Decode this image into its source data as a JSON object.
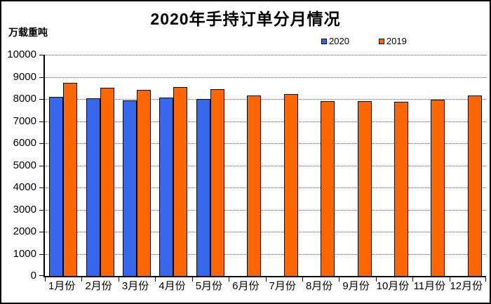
{
  "chart_data": {
    "type": "bar",
    "title": "2020年手持订单分月情况",
    "unit_label": "万载重吨",
    "categories": [
      "1月份",
      "2月份",
      "3月份",
      "4月份",
      "5月份",
      "6月份",
      "7月份",
      "8月份",
      "9月份",
      "10月份",
      "11月份",
      "12月份"
    ],
    "series": [
      {
        "name": "2020",
        "color": "#3667EC",
        "values": [
          8110,
          8030,
          7950,
          8060,
          7990,
          null,
          null,
          null,
          null,
          null,
          null,
          null
        ]
      },
      {
        "name": "2019",
        "color": "#FF6600",
        "values": [
          8730,
          8510,
          8420,
          8550,
          8440,
          8170,
          8210,
          7910,
          7920,
          7880,
          7960,
          8170
        ]
      }
    ],
    "ylim": [
      0,
      10000
    ],
    "ytick_step": 1000,
    "legend_position": "top-right",
    "grid": "horizontal-dotted",
    "bar_border_color": "#000000",
    "axis_color": "#000000",
    "gridline_color": "#5a5a5a",
    "background_color": "#ffffff"
  }
}
